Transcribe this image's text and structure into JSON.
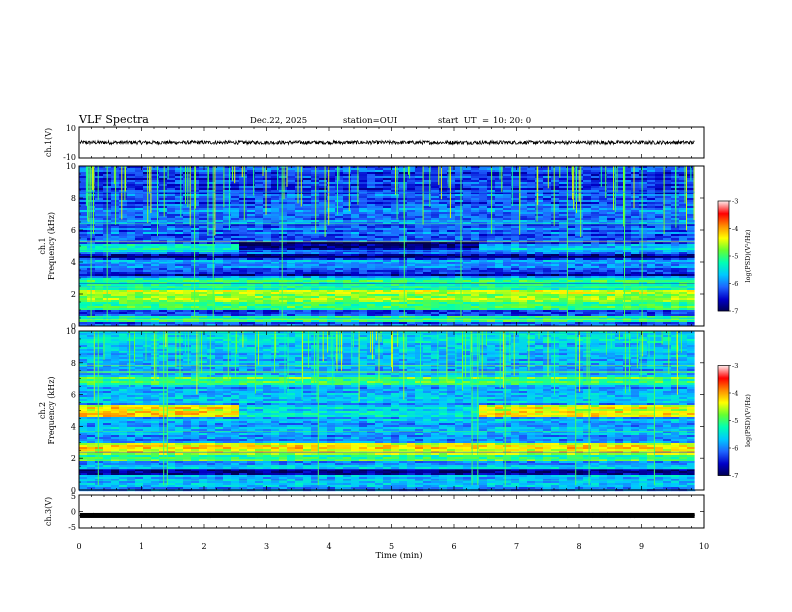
{
  "header": {
    "title": "VLF Spectra",
    "date": "Dec.22, 2025",
    "station": "station=OUI",
    "start_ut_label": "start  UT  =",
    "start_ut_value": "10: 20: 0"
  },
  "colors": {
    "spectrogram_scale": [
      "#000050",
      "#0000c8",
      "#1e64ff",
      "#00c8ff",
      "#00ffb4",
      "#64ff32",
      "#ffff00",
      "#ff8c00",
      "#ff0000",
      "#ffe6e6"
    ]
  },
  "chart_data": [
    {
      "type": "line",
      "name": "ch.1 waveform",
      "ylabel": "ch.1(V)",
      "ylim": [
        -10,
        10
      ],
      "yticks": [
        {
          "value": 10,
          "label": "10"
        },
        {
          "value": -10,
          "label": "-10"
        }
      ],
      "mean_value": 0,
      "noise_amplitude": 1.2
    },
    {
      "type": "heatmap",
      "name": "ch.1 spectrogram",
      "ylabel_line1": "ch.1",
      "ylabel_line2": "Frequency (kHz)",
      "ylim": [
        0,
        10
      ],
      "yticks": [
        {
          "value": 0,
          "label": "0"
        },
        {
          "value": 2,
          "label": "2"
        },
        {
          "value": 4,
          "label": "4"
        },
        {
          "value": 6,
          "label": "6"
        },
        {
          "value": 8,
          "label": "8"
        },
        {
          "value": 10,
          "label": "10"
        }
      ],
      "x_end_min": 9.85,
      "colorbar": {
        "label": "log(PSD)(V²/Hz)",
        "range": [
          -7,
          -3
        ],
        "ticks": [
          {
            "value": -3,
            "label": "-3"
          },
          {
            "value": -4,
            "label": "-4"
          },
          {
            "value": -5,
            "label": "-5"
          },
          {
            "value": -6,
            "label": "-6"
          },
          {
            "value": -7,
            "label": "-7"
          }
        ]
      },
      "bands_khz": [
        {
          "f0": 0.2,
          "f1": 0.6,
          "level": 0.45
        },
        {
          "f0": 1.0,
          "f1": 1.6,
          "level": 0.5
        },
        {
          "f0": 1.6,
          "f1": 2.3,
          "level": 0.6
        },
        {
          "f0": 2.3,
          "f1": 3.0,
          "level": 0.48
        },
        {
          "f0": 3.6,
          "f1": 4.1,
          "level": 0.3
        }
      ],
      "quiet_bands_khz": [
        {
          "f0": 4.2,
          "f1": 4.55,
          "level": 0.04
        },
        {
          "f0": 3.1,
          "f1": 3.3,
          "level": 0.08
        }
      ],
      "time_bands": [
        {
          "t0": 0,
          "t1": 2.5,
          "f0": 4.6,
          "f1": 5.1,
          "level": 0.42
        },
        {
          "t0": 2.5,
          "t1": 6.4,
          "f0": 4.7,
          "f1": 5.3,
          "level": 0.05
        },
        {
          "t0": 6.4,
          "t1": 9.85,
          "f0": 4.6,
          "f1": 5.1,
          "level": 0.32
        }
      ],
      "background_level": 0.22,
      "top_level": 0.18
    },
    {
      "type": "heatmap",
      "name": "ch.2 spectrogram",
      "ylabel_line1": "ch.2",
      "ylabel_line2": "Frequency (kHz)",
      "ylim": [
        0,
        10
      ],
      "yticks": [
        {
          "value": 0,
          "label": "0"
        },
        {
          "value": 2,
          "label": "2"
        },
        {
          "value": 4,
          "label": "4"
        },
        {
          "value": 6,
          "label": "6"
        },
        {
          "value": 8,
          "label": "8"
        },
        {
          "value": 10,
          "label": "10"
        }
      ],
      "x_end_min": 9.85,
      "colorbar": {
        "label": "log(PSD)(V²/Hz)",
        "range": [
          -7,
          -3
        ],
        "ticks": [
          {
            "value": -3,
            "label": "-3"
          },
          {
            "value": -4,
            "label": "-4"
          },
          {
            "value": -5,
            "label": "-5"
          },
          {
            "value": -6,
            "label": "-6"
          },
          {
            "value": -7,
            "label": "-7"
          }
        ]
      },
      "bands_khz": [
        {
          "f0": 0.3,
          "f1": 0.9,
          "level": 0.3
        },
        {
          "f0": 1.8,
          "f1": 2.2,
          "level": 0.5
        },
        {
          "f0": 2.2,
          "f1": 2.9,
          "level": 0.66
        },
        {
          "f0": 6.6,
          "f1": 7.1,
          "level": 0.5
        }
      ],
      "quiet_bands_khz": [
        {
          "f0": 1.0,
          "f1": 1.3,
          "level": 0.06
        }
      ],
      "time_bands": [
        {
          "t0": 0,
          "t1": 2.5,
          "f0": 4.6,
          "f1": 5.3,
          "level": 0.68
        },
        {
          "t0": 2.5,
          "t1": 6.4,
          "f0": 4.6,
          "f1": 5.3,
          "level": 0.38
        },
        {
          "t0": 6.4,
          "t1": 9.85,
          "f0": 4.6,
          "f1": 5.3,
          "level": 0.66
        }
      ],
      "background_level": 0.3,
      "top_level": 0.34
    },
    {
      "type": "line",
      "name": "ch.3 waveform",
      "ylabel": "ch.3(V)",
      "ylim": [
        -5,
        5
      ],
      "yticks": [
        {
          "value": 5,
          "label": "5"
        },
        {
          "value": 0,
          "label": "0"
        },
        {
          "value": -5,
          "label": "-5"
        }
      ],
      "mean_value": -1.2,
      "noise_amplitude": 0.25
    }
  ],
  "xaxis": {
    "label": "Time (min)",
    "range": [
      0,
      10
    ],
    "ticks": [
      {
        "value": 0,
        "label": "0"
      },
      {
        "value": 1,
        "label": "1"
      },
      {
        "value": 2,
        "label": "2"
      },
      {
        "value": 3,
        "label": "3"
      },
      {
        "value": 4,
        "label": "4"
      },
      {
        "value": 5,
        "label": "5"
      },
      {
        "value": 6,
        "label": "6"
      },
      {
        "value": 7,
        "label": "7"
      },
      {
        "value": 8,
        "label": "8"
      },
      {
        "value": 9,
        "label": "9"
      },
      {
        "value": 10,
        "label": "10"
      }
    ]
  }
}
